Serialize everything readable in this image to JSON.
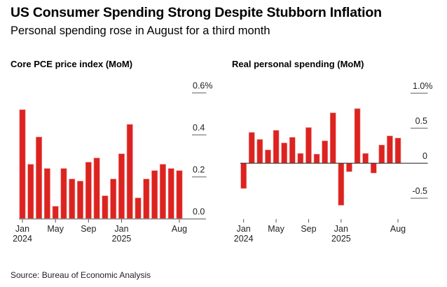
{
  "header": {
    "title": "US Consumer Spending Strong Despite Stubborn Inflation",
    "subtitle": "Personal spending rose in August for a third month"
  },
  "footer": {
    "source": "Source: Bureau of Economic Analysis"
  },
  "colors": {
    "bar": "#dc2320",
    "bar_edge": "#ee8a88",
    "grid": "#8a8a8a",
    "zero_line": "#333333"
  },
  "chart_data": [
    {
      "type": "bar",
      "title": "Core PCE price index (MoM)",
      "xlabel": "",
      "ylabel": "",
      "unit": "%",
      "categories": [
        "Jan 2024",
        "Feb 2024",
        "Mar 2024",
        "Apr 2024",
        "May 2024",
        "Jun 2024",
        "Jul 2024",
        "Aug 2024",
        "Sep 2024",
        "Oct 2024",
        "Nov 2024",
        "Dec 2024",
        "Jan 2025",
        "Feb 2025",
        "Mar 2025",
        "Apr 2025",
        "May 2025",
        "Jun 2025",
        "Jul 2025",
        "Aug 2025"
      ],
      "values": [
        0.52,
        0.26,
        0.39,
        0.24,
        0.06,
        0.24,
        0.19,
        0.18,
        0.27,
        0.29,
        0.11,
        0.19,
        0.31,
        0.45,
        0.1,
        0.19,
        0.23,
        0.26,
        0.24,
        0.23
      ],
      "ylim": [
        0,
        0.6
      ],
      "yticks": [
        0.0,
        0.2,
        0.4,
        0.6
      ],
      "ytick_labels": [
        "0.0",
        "0.2",
        "0.4",
        "0.6%"
      ],
      "xticks": [
        {
          "index": 0,
          "label": "Jan",
          "sublabel": "2024"
        },
        {
          "index": 4,
          "label": "May",
          "sublabel": ""
        },
        {
          "index": 8,
          "label": "Sep",
          "sublabel": ""
        },
        {
          "index": 12,
          "label": "Jan",
          "sublabel": "2025"
        },
        {
          "index": 19,
          "label": "Aug",
          "sublabel": ""
        }
      ],
      "grid": true,
      "legend": "none"
    },
    {
      "type": "bar",
      "title": "Real personal spending (MoM)",
      "xlabel": "",
      "ylabel": "",
      "unit": "%",
      "categories": [
        "Jan 2024",
        "Feb 2024",
        "Mar 2024",
        "Apr 2024",
        "May 2024",
        "Jun 2024",
        "Jul 2024",
        "Aug 2024",
        "Sep 2024",
        "Oct 2024",
        "Nov 2024",
        "Dec 2024",
        "Jan 2025",
        "Feb 2025",
        "Mar 2025",
        "Apr 2025",
        "May 2025",
        "Jun 2025",
        "Jul 2025",
        "Aug 2025"
      ],
      "values": [
        -0.36,
        0.44,
        0.34,
        0.19,
        0.47,
        0.29,
        0.37,
        0.14,
        0.51,
        0.13,
        0.32,
        0.72,
        -0.6,
        -0.12,
        0.78,
        0.14,
        -0.14,
        0.26,
        0.39,
        0.36
      ],
      "ylim": [
        -0.8,
        1.0
      ],
      "yticks": [
        -0.5,
        0,
        0.5,
        1.0
      ],
      "ytick_labels": [
        "-0.5",
        "0",
        "0.5",
        "1.0%"
      ],
      "xticks": [
        {
          "index": 0,
          "label": "Jan",
          "sublabel": "2024"
        },
        {
          "index": 4,
          "label": "May",
          "sublabel": ""
        },
        {
          "index": 8,
          "label": "Sep",
          "sublabel": ""
        },
        {
          "index": 12,
          "label": "Jan",
          "sublabel": "2025"
        },
        {
          "index": 19,
          "label": "Aug",
          "sublabel": ""
        }
      ],
      "grid": true,
      "legend": "none"
    }
  ]
}
